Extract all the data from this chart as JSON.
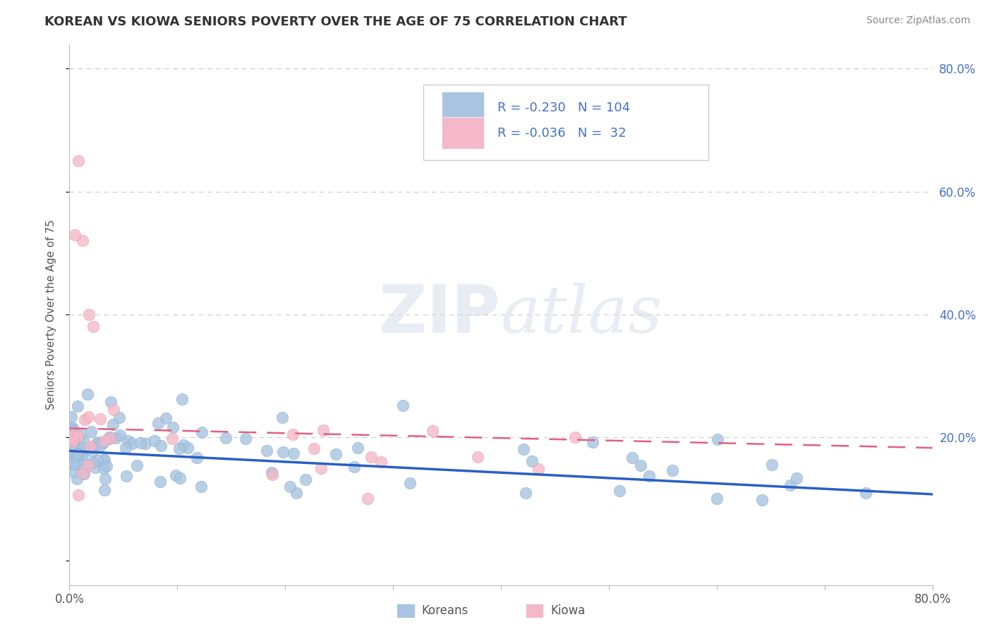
{
  "title": "KOREAN VS KIOWA SENIORS POVERTY OVER THE AGE OF 75 CORRELATION CHART",
  "source": "Source: ZipAtlas.com",
  "ylabel": "Seniors Poverty Over the Age of 75",
  "xlim": [
    0.0,
    0.8
  ],
  "ylim": [
    -0.04,
    0.84
  ],
  "background_color": "#ffffff",
  "grid_color": "#cccccc",
  "korean_color": "#a8c4e0",
  "korean_edge_color": "#8aafd0",
  "kiowa_color": "#f4b8c8",
  "kiowa_edge_color": "#e8a0b0",
  "korean_line_color": "#2a5fc4",
  "kiowa_line_color": "#e06080",
  "legend_text_color": "#4472c4",
  "legend_korean_R": "-0.230",
  "legend_korean_N": "104",
  "legend_kiowa_R": "-0.036",
  "legend_kiowa_N": "32",
  "title_color": "#333333",
  "source_color": "#888888",
  "ylabel_color": "#555555",
  "tick_color": "#555555"
}
